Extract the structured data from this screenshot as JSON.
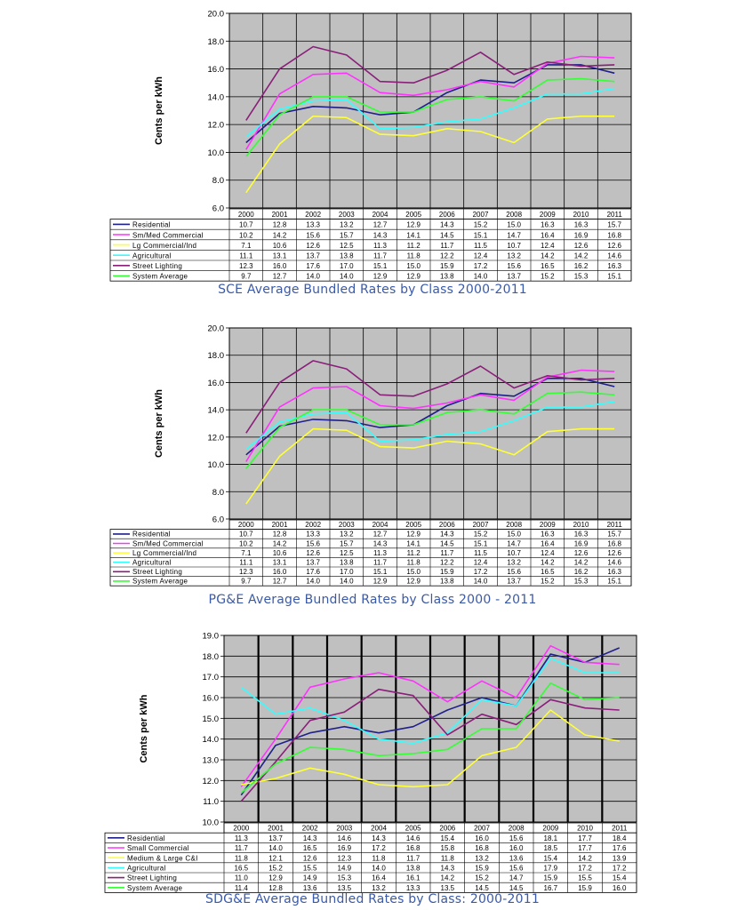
{
  "chart_data": [
    {
      "type": "line",
      "title": "SCE Average Bundled Rates by Class   2000-2011",
      "ylabel": "Cents per kWh",
      "ylim": [
        6.0,
        20.0
      ],
      "yticks": [
        "6.0",
        "8.0",
        "10.0",
        "12.0",
        "14.0",
        "16.0",
        "18.0",
        "20.0"
      ],
      "grid": true,
      "legend": "data-table-below",
      "categories": [
        "2000",
        "2001",
        "2002",
        "2003",
        "2004",
        "2005",
        "2006",
        "2007",
        "2008",
        "2009",
        "2010",
        "2011"
      ],
      "series": [
        {
          "name": "Residential",
          "color": "#1f1f8a",
          "values": [
            10.7,
            12.8,
            13.3,
            13.2,
            12.7,
            12.9,
            14.3,
            15.2,
            15.0,
            16.3,
            16.3,
            15.7
          ]
        },
        {
          "name": "Sm/Med Commercial",
          "color": "#ff33ff",
          "values": [
            10.2,
            14.2,
            15.6,
            15.7,
            14.3,
            14.1,
            14.5,
            15.1,
            14.7,
            16.4,
            16.9,
            16.8
          ]
        },
        {
          "name": "Lg Commercial/Ind",
          "color": "#ffff33",
          "values": [
            7.1,
            10.6,
            12.6,
            12.5,
            11.3,
            11.2,
            11.7,
            11.5,
            10.7,
            12.4,
            12.6,
            12.6
          ]
        },
        {
          "name": "Agricultural",
          "color": "#33ffff",
          "values": [
            11.1,
            13.1,
            13.7,
            13.8,
            11.7,
            11.8,
            12.2,
            12.4,
            13.2,
            14.2,
            14.2,
            14.6
          ]
        },
        {
          "name": "Street Lighting",
          "color": "#8a1f7a",
          "values": [
            12.3,
            16.0,
            17.6,
            17.0,
            15.1,
            15.0,
            15.9,
            17.2,
            15.6,
            16.5,
            16.2,
            16.3
          ]
        },
        {
          "name": "System Average",
          "color": "#33ff33",
          "values": [
            9.7,
            12.7,
            14.0,
            14.0,
            12.9,
            12.9,
            13.8,
            14.0,
            13.7,
            15.2,
            15.3,
            15.1
          ]
        }
      ]
    },
    {
      "type": "line",
      "title": "PG&E Average Bundled Rates by Class   2000 - 2011",
      "ylabel": "Cents per kWh",
      "ylim": [
        6.0,
        20.0
      ],
      "yticks": [
        "6.0",
        "8.0",
        "10.0",
        "12.0",
        "14.0",
        "16.0",
        "18.0",
        "20.0"
      ],
      "grid": true,
      "legend": "data-table-below",
      "categories": [
        "2000",
        "2001",
        "2002",
        "2003",
        "2004",
        "2005",
        "2006",
        "2007",
        "2008",
        "2009",
        "2010",
        "2011"
      ],
      "series": [
        {
          "name": "Residential",
          "color": "#1f1f8a",
          "values": [
            10.7,
            12.8,
            13.3,
            13.2,
            12.7,
            12.9,
            14.3,
            15.2,
            15.0,
            16.3,
            16.3,
            15.7
          ]
        },
        {
          "name": "Sm/Med Commercial",
          "color": "#ff33ff",
          "values": [
            10.2,
            14.2,
            15.6,
            15.7,
            14.3,
            14.1,
            14.5,
            15.1,
            14.7,
            16.4,
            16.9,
            16.8
          ]
        },
        {
          "name": "Lg Commercial/Ind",
          "color": "#ffff33",
          "values": [
            7.1,
            10.6,
            12.6,
            12.5,
            11.3,
            11.2,
            11.7,
            11.5,
            10.7,
            12.4,
            12.6,
            12.6
          ]
        },
        {
          "name": "Agricultural",
          "color": "#33ffff",
          "values": [
            11.1,
            13.1,
            13.7,
            13.8,
            11.7,
            11.8,
            12.2,
            12.4,
            13.2,
            14.2,
            14.2,
            14.6
          ]
        },
        {
          "name": "Street Lighting",
          "color": "#8a1f7a",
          "values": [
            12.3,
            16.0,
            17.6,
            17.0,
            15.1,
            15.0,
            15.9,
            17.2,
            15.6,
            16.5,
            16.2,
            16.3
          ]
        },
        {
          "name": "System Average",
          "color": "#33ff33",
          "values": [
            9.7,
            12.7,
            14.0,
            14.0,
            12.9,
            12.9,
            13.8,
            14.0,
            13.7,
            15.2,
            15.3,
            15.1
          ]
        }
      ]
    },
    {
      "type": "line",
      "title": "SDG&E Average Bundled Rates by Class: 2000-2011",
      "ylabel": "Cents per kWh",
      "ylim": [
        10.0,
        19.0
      ],
      "yticks": [
        "10.0",
        "11.0",
        "12.0",
        "13.0",
        "14.0",
        "15.0",
        "16.0",
        "17.0",
        "18.0",
        "19.0"
      ],
      "grid": true,
      "legend": "data-table-below",
      "categories": [
        "2000",
        "2001",
        "2002",
        "2003",
        "2004",
        "2005",
        "2006",
        "2007",
        "2008",
        "2009",
        "2010",
        "2011"
      ],
      "series": [
        {
          "name": "Residential",
          "color": "#1f1f8a",
          "values": [
            11.3,
            13.7,
            14.3,
            14.6,
            14.3,
            14.6,
            15.4,
            16.0,
            15.6,
            18.1,
            17.7,
            18.4
          ]
        },
        {
          "name": "Small Commercial",
          "color": "#ff33ff",
          "values": [
            11.7,
            14.0,
            16.5,
            16.9,
            17.2,
            16.8,
            15.8,
            16.8,
            16.0,
            18.5,
            17.7,
            17.6
          ]
        },
        {
          "name": "Medium & Large C&I",
          "color": "#ffff33",
          "values": [
            11.8,
            12.1,
            12.6,
            12.3,
            11.8,
            11.7,
            11.8,
            13.2,
            13.6,
            15.4,
            14.2,
            13.9
          ]
        },
        {
          "name": "Agricultural",
          "color": "#33ffff",
          "values": [
            16.5,
            15.2,
            15.5,
            14.9,
            14.0,
            13.8,
            14.3,
            15.9,
            15.6,
            17.9,
            17.2,
            17.2
          ]
        },
        {
          "name": "Street Lighting",
          "color": "#8a1f7a",
          "values": [
            11.0,
            12.9,
            14.9,
            15.3,
            16.4,
            16.1,
            14.2,
            15.2,
            14.7,
            15.9,
            15.5,
            15.4
          ]
        },
        {
          "name": "System Average",
          "color": "#33ff33",
          "values": [
            11.4,
            12.8,
            13.6,
            13.5,
            13.2,
            13.3,
            13.5,
            14.5,
            14.5,
            16.7,
            15.9,
            16.0
          ]
        }
      ]
    }
  ]
}
